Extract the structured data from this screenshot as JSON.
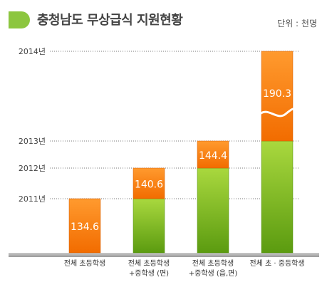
{
  "header": {
    "title": "충청남도 무상급식 지원현황",
    "unit": "단위 : 천명"
  },
  "colors": {
    "orange_top": "#ff8c1a",
    "orange_bottom": "#f06a00",
    "green_top": "#a6d63a",
    "green_bottom": "#5e9e12",
    "title_marker": "#8cc63f"
  },
  "chart_data": {
    "type": "bar",
    "title": "충청남도 무상급식 지원현황",
    "unit_label": "단위 : 천명",
    "year_labels": [
      "2014년",
      "2013년",
      "2012년",
      "2011년"
    ],
    "categories": [
      "전체 초등학생",
      "전체 초등학생\n+중학생 (면)",
      "전체 초등학생\n+중학생 (읍,면)",
      "전체 초 · 중등학생"
    ],
    "values": [
      134.6,
      140.6,
      144.4,
      190.3
    ],
    "value_labels": [
      "134.6",
      "140.6",
      "144.4",
      "190.3"
    ],
    "axis_break": true,
    "legend": "none",
    "grid": "dotted reference lines for each year"
  }
}
